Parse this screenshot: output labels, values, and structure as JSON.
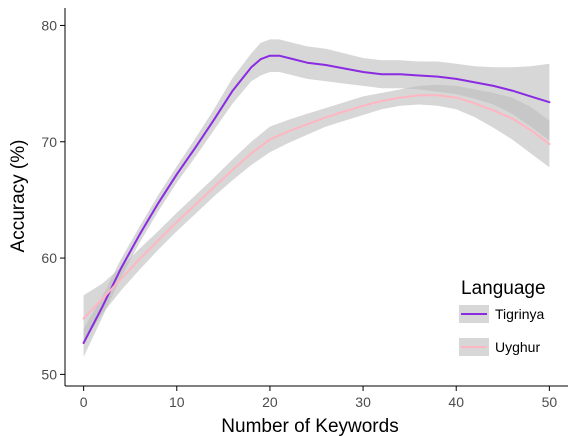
{
  "chart_data": {
    "type": "line",
    "title": "",
    "xlabel": "Number of Keywords",
    "ylabel": "Accuracy (%)",
    "xlim": [
      -2,
      52
    ],
    "ylim": [
      49,
      81.5
    ],
    "xticks": [
      0,
      10,
      20,
      30,
      40,
      50
    ],
    "yticks": [
      50,
      60,
      70,
      80
    ],
    "grid": false,
    "legend": {
      "title": "Language",
      "position": "right"
    },
    "series": [
      {
        "name": "Tigrinya",
        "color": "#8a2be2",
        "x": [
          0,
          2,
          4,
          6,
          8,
          10,
          12,
          14,
          16,
          18,
          19,
          20,
          21,
          22,
          24,
          26,
          28,
          30,
          32,
          34,
          36,
          38,
          40,
          42,
          44,
          46,
          48,
          50
        ],
        "y": [
          52.7,
          55.8,
          59.1,
          62.0,
          64.7,
          67.2,
          69.5,
          71.9,
          74.4,
          76.4,
          77.1,
          77.4,
          77.4,
          77.2,
          76.8,
          76.6,
          76.3,
          76.0,
          75.8,
          75.8,
          75.7,
          75.6,
          75.4,
          75.1,
          74.8,
          74.4,
          73.9,
          73.4
        ],
        "lower": [
          51.5,
          54.9,
          58.3,
          61.3,
          64.0,
          66.5,
          68.7,
          71.0,
          73.3,
          75.2,
          75.7,
          76.0,
          76.0,
          75.8,
          75.4,
          75.2,
          75.0,
          74.8,
          74.6,
          74.6,
          74.5,
          74.3,
          74.1,
          73.7,
          73.2,
          72.4,
          71.3,
          70.1
        ],
        "upper": [
          53.9,
          56.7,
          59.9,
          62.7,
          65.4,
          67.9,
          70.3,
          72.8,
          75.5,
          77.6,
          78.5,
          78.8,
          78.8,
          78.6,
          78.2,
          78.0,
          77.6,
          77.2,
          77.0,
          77.0,
          76.9,
          76.9,
          76.7,
          76.5,
          76.4,
          76.4,
          76.5,
          76.7
        ]
      },
      {
        "name": "Uyghur",
        "color": "#ffb6c1",
        "x": [
          0,
          2,
          4,
          6,
          8,
          10,
          12,
          14,
          16,
          18,
          20,
          22,
          24,
          26,
          28,
          30,
          32,
          34,
          36,
          38,
          40,
          42,
          44,
          46,
          48,
          50
        ],
        "y": [
          54.8,
          56.5,
          58.2,
          59.9,
          61.5,
          63.1,
          64.6,
          66.1,
          67.6,
          69.0,
          70.2,
          70.9,
          71.5,
          72.1,
          72.6,
          73.1,
          73.5,
          73.8,
          74.0,
          74.0,
          73.8,
          73.3,
          72.7,
          72.0,
          71.0,
          69.8
        ],
        "lower": [
          52.8,
          55.2,
          57.2,
          59.0,
          60.7,
          62.3,
          63.8,
          65.3,
          66.7,
          68.0,
          69.1,
          69.9,
          70.6,
          71.3,
          71.8,
          72.3,
          72.8,
          73.1,
          73.2,
          73.1,
          72.8,
          72.1,
          71.2,
          70.2,
          69.0,
          67.8
        ],
        "upper": [
          56.8,
          57.8,
          59.2,
          60.8,
          62.3,
          63.9,
          65.4,
          66.9,
          68.5,
          70.0,
          71.3,
          71.9,
          72.4,
          72.9,
          73.4,
          73.9,
          74.2,
          74.5,
          74.8,
          74.9,
          74.8,
          74.5,
          74.2,
          73.8,
          73.0,
          71.8
        ]
      }
    ]
  },
  "colors": {
    "ribbon": "#bdbdbd",
    "axis": "#000000",
    "tick_text": "#4d4d4d",
    "background": "#ffffff"
  }
}
